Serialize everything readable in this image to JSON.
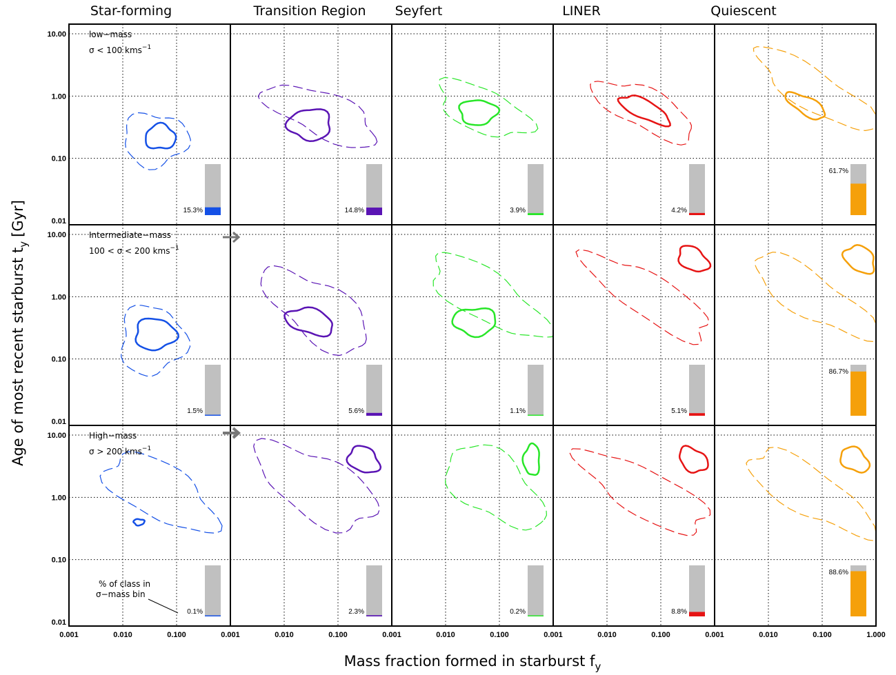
{
  "chart_data": {
    "type": "contour",
    "grid": true,
    "xlabel": "Mass fraction formed in starburst f",
    "xlabel_sub": "y",
    "ylabel": "Age of most recent starburst t",
    "ylabel_sub": "y",
    "ylabel_unit": "[Gyr]",
    "xscale": "log",
    "yscale": "log",
    "xlim": [
      0.001,
      1.0
    ],
    "ylim": [
      0.01,
      10.0
    ],
    "x_tick_labels": [
      "0.001",
      "0.010",
      "0.100",
      "1.000"
    ],
    "y_tick_labels": [
      "0.01",
      "0.10",
      "1.00",
      "10.00"
    ],
    "columns": [
      {
        "name": "Star-forming",
        "color": "#1450e6"
      },
      {
        "name": "Transition Region",
        "color": "#5a14b4"
      },
      {
        "name": "Seyfert",
        "color": "#28e628"
      },
      {
        "name": "LINER",
        "color": "#e61414"
      },
      {
        "name": "Quiescent",
        "color": "#f5a00a"
      }
    ],
    "rows": [
      {
        "label_line1": "low−mass",
        "label_line2": "σ < 100 kms",
        "label_sup": "−1"
      },
      {
        "label_line1": "Intermediate−mass",
        "label_line2": "100 < σ < 200 kms",
        "label_sup": "−1"
      },
      {
        "label_line1": "High−mass",
        "label_line2": "σ   > 200 kms",
        "label_sup": "−1"
      }
    ],
    "class_fraction_percent": [
      [
        15.3,
        14.8,
        3.9,
        4.2,
        61.7
      ],
      [
        1.5,
        5.6,
        1.1,
        5.1,
        86.7
      ],
      [
        0.1,
        2.3,
        0.2,
        8.8,
        88.6
      ]
    ],
    "class_fraction_labels": [
      [
        "15.3%",
        "14.8%",
        "3.9%",
        "4.2%",
        "61.7%"
      ],
      [
        "1.5%",
        "5.6%",
        "1.1%",
        "5.1%",
        "86.7%"
      ],
      [
        "0.1%",
        "2.3%",
        "0.2%",
        "8.8%",
        "88.6%"
      ]
    ],
    "contour_peaks": [
      [
        {
          "inner": {
            "x": 0.05,
            "y": 0.22,
            "sx": 0.28,
            "sy": 0.2
          },
          "outer": {
            "x": 0.04,
            "y": 0.2,
            "sx": 0.6,
            "sy": 0.42
          }
        },
        {
          "inner": {
            "x": 0.03,
            "y": 0.35,
            "sx": 0.4,
            "sy": 0.25
          },
          "outer": {
            "x": 0.05,
            "y": 0.5,
            "sx": 1.1,
            "sy": 0.35,
            "tilt": -20
          }
        },
        {
          "inner": {
            "x": 0.04,
            "y": 0.55,
            "sx": 0.35,
            "sy": 0.2
          },
          "outer": {
            "x": 0.05,
            "y": 0.6,
            "sx": 0.9,
            "sy": 0.35,
            "tilt": -20
          }
        },
        {
          "inner": {
            "x": 0.05,
            "y": 0.6,
            "sx": 0.5,
            "sy": 0.15,
            "tilt": -22
          },
          "outer": {
            "x": 0.05,
            "y": 0.6,
            "sx": 1.0,
            "sy": 0.32,
            "tilt": -22
          }
        },
        {
          "inner": {
            "x": 0.05,
            "y": 0.7,
            "sx": 0.4,
            "sy": 0.14,
            "tilt": -25
          },
          "outer": {
            "x": 0.08,
            "y": 1.2,
            "sx": 1.3,
            "sy": 0.32,
            "tilt": -28
          }
        }
      ],
      [
        {
          "inner": {
            "x": 0.04,
            "y": 0.25,
            "sx": 0.38,
            "sy": 0.25
          },
          "outer": {
            "x": 0.035,
            "y": 0.2,
            "sx": 0.6,
            "sy": 0.55
          }
        },
        {
          "inner": {
            "x": 0.03,
            "y": 0.4,
            "sx": 0.45,
            "sy": 0.2,
            "tilt": -12
          },
          "outer": {
            "x": 0.04,
            "y": 0.6,
            "sx": 1.1,
            "sy": 0.45,
            "tilt": -30
          }
        },
        {
          "inner": {
            "x": 0.035,
            "y": 0.4,
            "sx": 0.4,
            "sy": 0.22
          },
          "outer": {
            "x": 0.06,
            "y": 1.0,
            "sx": 1.2,
            "sy": 0.4,
            "tilt": -28
          }
        },
        {
          "inner": {
            "x": 0.4,
            "y": 4.0,
            "sx": 0.3,
            "sy": 0.18,
            "tilt": -25
          },
          "outer": {
            "x": 0.06,
            "y": 1.0,
            "sx": 1.3,
            "sy": 0.35,
            "tilt": -28
          }
        },
        {
          "inner": {
            "x": 0.5,
            "y": 4.0,
            "sx": 0.3,
            "sy": 0.2,
            "tilt": -25
          },
          "outer": {
            "x": 0.07,
            "y": 1.0,
            "sx": 1.3,
            "sy": 0.35,
            "tilt": -28
          }
        }
      ],
      [
        {
          "inner": {
            "x": 0.02,
            "y": 0.4,
            "sx": 0.1,
            "sy": 0.05
          },
          "outer": {
            "x": 0.05,
            "y": 1.2,
            "sx": 1.1,
            "sy": 0.45,
            "tilt": -25
          }
        },
        {
          "inner": {
            "x": 0.3,
            "y": 4.0,
            "sx": 0.3,
            "sy": 0.2,
            "tilt": -20
          },
          "outer": {
            "x": 0.04,
            "y": 1.5,
            "sx": 1.2,
            "sy": 0.5,
            "tilt": -25
          }
        },
        {
          "inner": {
            "x": 0.4,
            "y": 4.0,
            "sx": 0.15,
            "sy": 0.25
          },
          "outer": {
            "x": 0.08,
            "y": 1.5,
            "sx": 1.0,
            "sy": 0.5,
            "tilt": -30
          }
        },
        {
          "inner": {
            "x": 0.4,
            "y": 4.0,
            "sx": 0.28,
            "sy": 0.18,
            "tilt": -25
          },
          "outer": {
            "x": 0.05,
            "y": 1.2,
            "sx": 1.3,
            "sy": 0.38,
            "tilt": -25
          }
        },
        {
          "inner": {
            "x": 0.4,
            "y": 4.0,
            "sx": 0.28,
            "sy": 0.18,
            "tilt": -25
          },
          "outer": {
            "x": 0.06,
            "y": 1.2,
            "sx": 1.3,
            "sy": 0.38,
            "tilt": -27
          }
        }
      ]
    ],
    "annotation": {
      "line1": "% of class in",
      "line2": "σ−mass bin"
    }
  }
}
